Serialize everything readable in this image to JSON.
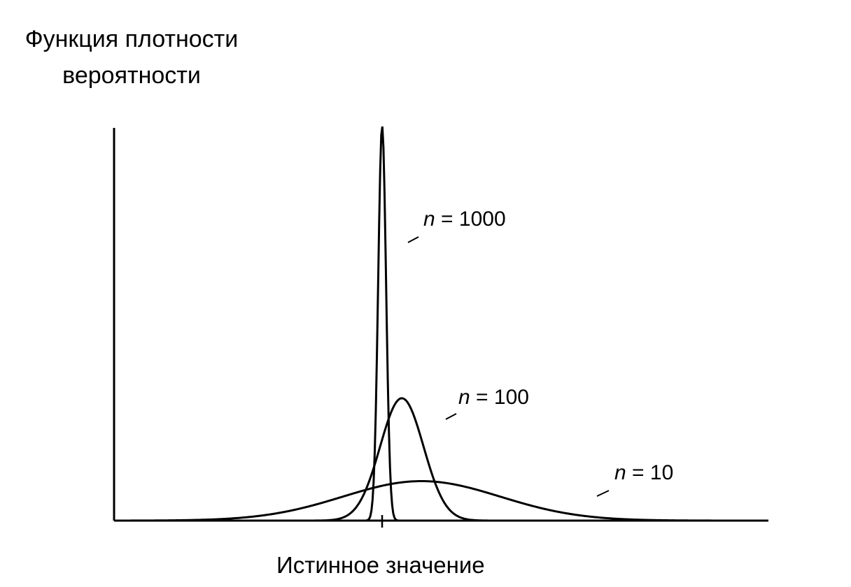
{
  "chart_data": {
    "type": "line",
    "ylabel": "Функция плотности\nвероятности",
    "xlabel": "Истинное значение",
    "xtick_labels": [
      ""
    ],
    "grid": false,
    "legend": "none",
    "colors": {
      "curve": "#000000",
      "axis": "#000000",
      "background": "#ffffff"
    },
    "series": [
      {
        "label_var": "n",
        "label_value": "= 1000",
        "center": 0.0,
        "peak": 1.0,
        "spread": 0.1
      },
      {
        "label_var": "n",
        "label_value": "= 100",
        "center": 0.5,
        "peak": 0.31,
        "spread": 0.55
      },
      {
        "label_var": "n",
        "label_value": "= 10",
        "center": 1.0,
        "peak": 0.1,
        "spread": 2.0
      }
    ]
  }
}
